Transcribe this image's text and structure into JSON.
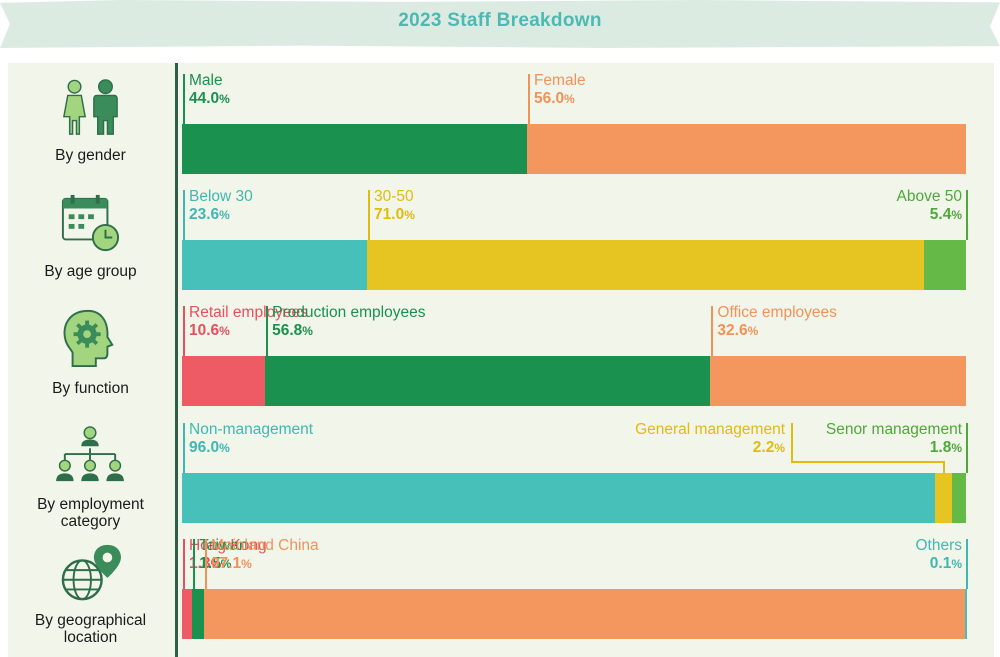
{
  "title": "2023 Staff Breakdown",
  "colors": {
    "green": "#1b9150",
    "light_green": "#64b947",
    "orange": "#f4975e",
    "teal": "#46c0b8",
    "yellow": "#e6c523",
    "red": "#ee5b64",
    "icon_green": "#3a8d5a",
    "title": "#4cb9b3"
  },
  "rows": [
    {
      "label": "By gender",
      "icon": "gender-icon"
    },
    {
      "label": "By age group",
      "icon": "calendar-clock-icon"
    },
    {
      "label": "By function",
      "icon": "head-gear-icon"
    },
    {
      "label": "By employment category",
      "icon": "org-chart-icon"
    },
    {
      "label": "By geographical location",
      "icon": "globe-pin-icon"
    }
  ],
  "chart_data": {
    "type": "bar",
    "stacked": "horizontal-100-percent",
    "title": "2023 Staff Breakdown",
    "unit": "%",
    "groups": [
      {
        "category": "By gender",
        "series": [
          {
            "name": "Male",
            "value": 44.0,
            "pct_text": "44.0",
            "color": "#1b9150"
          },
          {
            "name": "Female",
            "value": 56.0,
            "pct_text": "56.0",
            "color": "#f4975e"
          }
        ]
      },
      {
        "category": "By age group",
        "series": [
          {
            "name": "Below 30",
            "value": 23.6,
            "pct_text": "23.6",
            "color": "#46c0b8"
          },
          {
            "name": "30-50",
            "value": 71.0,
            "pct_text": "71.0",
            "color": "#e6c523"
          },
          {
            "name": "Above 50",
            "value": 5.4,
            "pct_text": "5.4",
            "color": "#64b947"
          }
        ]
      },
      {
        "category": "By function",
        "series": [
          {
            "name": "Retail employees",
            "value": 10.6,
            "pct_text": "10.6",
            "color": "#ee5b64"
          },
          {
            "name": "Production employees",
            "value": 56.8,
            "pct_text": "56.8",
            "color": "#1b9150"
          },
          {
            "name": "Office employees",
            "value": 32.6,
            "pct_text": "32.6",
            "color": "#f4975e"
          }
        ]
      },
      {
        "category": "By employment category",
        "series": [
          {
            "name": "Non-management",
            "value": 96.0,
            "pct_text": "96.0",
            "color": "#46c0b8"
          },
          {
            "name": "General management",
            "value": 2.2,
            "pct_text": "2.2",
            "color": "#e6c523"
          },
          {
            "name": "Senor management",
            "value": 1.8,
            "pct_text": "1.8",
            "color": "#64b947"
          }
        ]
      },
      {
        "category": "By geographical location",
        "series": [
          {
            "name": "Hong Kong",
            "value": 1.3,
            "pct_text": "1.3",
            "color": "#ee5b64"
          },
          {
            "name": "Taiwan",
            "value": 1.5,
            "pct_text": "1.5",
            "color": "#1b9150"
          },
          {
            "name": "Mainland China",
            "value": 97.1,
            "pct_text": "97.1",
            "color": "#f4975e"
          },
          {
            "name": "Others",
            "value": 0.1,
            "pct_text": "0.1",
            "color": "#46c0b8"
          }
        ]
      }
    ]
  }
}
